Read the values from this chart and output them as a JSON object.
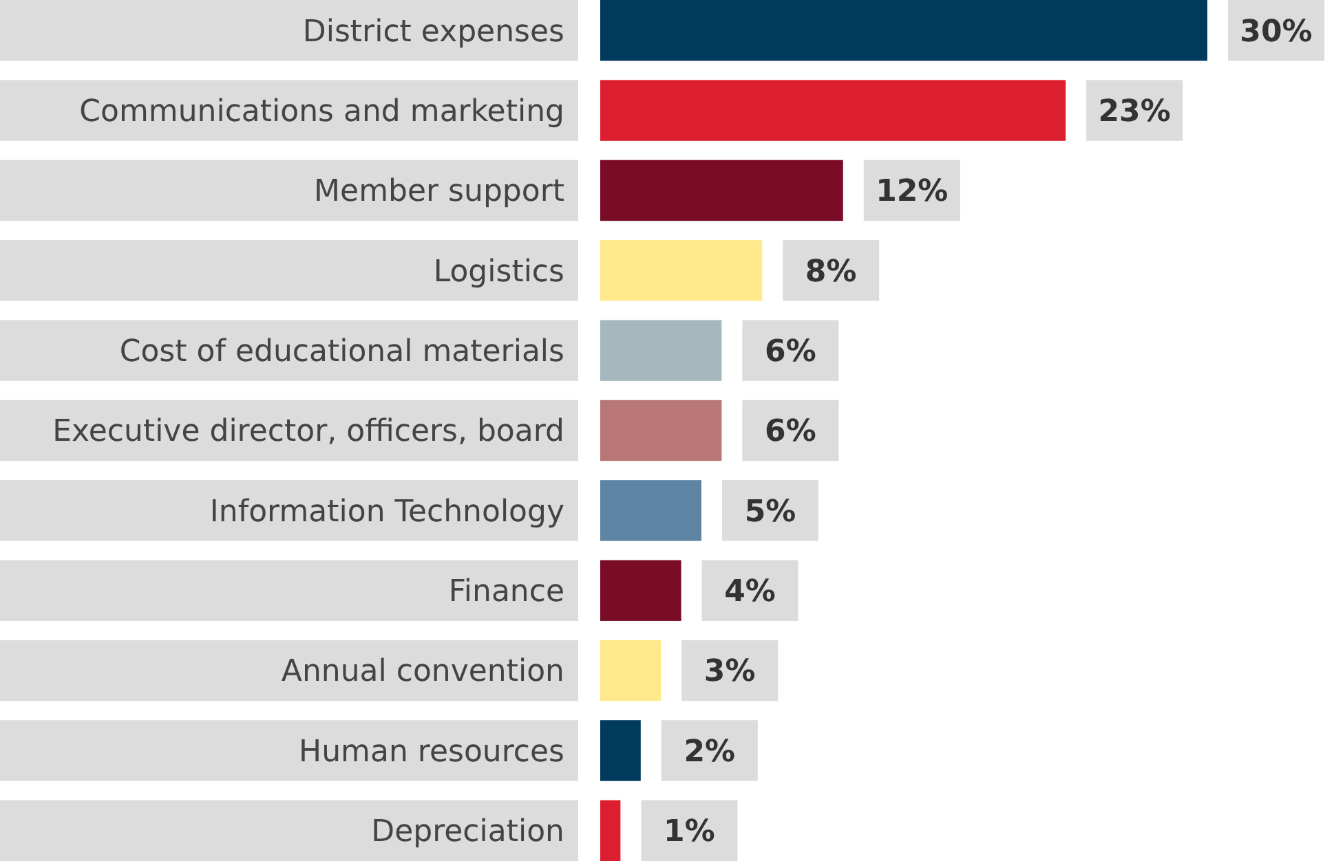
{
  "chart_data": {
    "type": "bar",
    "orientation": "horizontal",
    "categories": [
      "District expenses",
      "Communications and marketing",
      "Member support",
      "Logistics",
      "Cost of educational materials",
      "Executive director, officers, board",
      "Information Technology",
      "Finance",
      "Annual convention",
      "Human resources",
      "Depreciation"
    ],
    "values": [
      30,
      23,
      12,
      8,
      6,
      6,
      5,
      4,
      3,
      2,
      1
    ],
    "colors": [
      "#003a5d",
      "#dc1f2e",
      "#7a0c27",
      "#ffe98a",
      "#a5b8bd",
      "#b87676",
      "#5e84a3",
      "#7a0c27",
      "#ffe98a",
      "#003a5d",
      "#dc1f2e"
    ],
    "value_labels": [
      "30%",
      "23%",
      "12%",
      "8%",
      "6%",
      "6%",
      "5%",
      "4%",
      "3%",
      "2%",
      "1%"
    ]
  }
}
